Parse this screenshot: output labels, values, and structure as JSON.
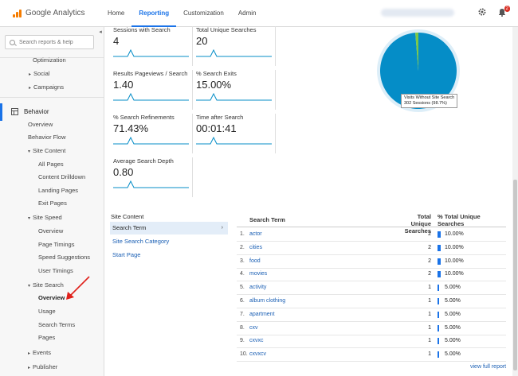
{
  "header": {
    "logo_text": "Google Analytics",
    "nav": [
      {
        "label": "Home",
        "active": false
      },
      {
        "label": "Reporting",
        "active": true
      },
      {
        "label": "Customization",
        "active": false
      },
      {
        "label": "Admin",
        "active": false
      }
    ],
    "notification_count": "2",
    "gear_icon": "gear-icon",
    "bell_icon": "bell-icon"
  },
  "sidebar": {
    "search_placeholder": "Search reports & help",
    "items": {
      "optimization": "Optimization",
      "social": "Social",
      "campaigns": "Campaigns",
      "behavior": "Behavior",
      "overview": "Overview",
      "behavior_flow": "Behavior Flow",
      "site_content": "Site Content",
      "all_pages": "All Pages",
      "content_drilldown": "Content Drilldown",
      "landing_pages": "Landing Pages",
      "exit_pages": "Exit Pages",
      "site_speed": "Site Speed",
      "speed_overview": "Overview",
      "page_timings": "Page Timings",
      "speed_suggestions": "Speed Suggestions",
      "user_timings": "User Timings",
      "site_search": "Site Search",
      "search_overview": "Overview",
      "usage": "Usage",
      "search_terms": "Search Terms",
      "pages": "Pages",
      "events": "Events",
      "publisher": "Publisher"
    }
  },
  "metrics": [
    {
      "label": "Sessions with Search",
      "value": "4"
    },
    {
      "label": "Total Unique Searches",
      "value": "20"
    },
    {
      "label": "Results Pageviews / Search",
      "value": "1.40"
    },
    {
      "label": "% Search Exits",
      "value": "15.00%"
    },
    {
      "label": "% Search Refinements",
      "value": "71.43%"
    },
    {
      "label": "Time after Search",
      "value": "00:01:41"
    },
    {
      "label": "Average Search Depth",
      "value": "0.80"
    }
  ],
  "pie": {
    "tooltip_line1": "Visits Without Site Search",
    "tooltip_line2": "302 Sessions (98.7%)",
    "main_fraction": 0.987,
    "main_color": "#058dc7",
    "minor_color": "#7cc845"
  },
  "site_content": {
    "header": "Site Content",
    "items": [
      "Search Term",
      "Site Search Category",
      "Start Page"
    ]
  },
  "search_table": {
    "col_term": "Search Term",
    "col_searches_1": "Total Unique",
    "col_searches_2": "Searches",
    "col_pct_1": "% Total Unique",
    "col_pct_2": "Searches",
    "rows": [
      {
        "idx": "1.",
        "term": "actor",
        "count": "2",
        "pct": "10.00%",
        "fraction": 0.1
      },
      {
        "idx": "2.",
        "term": "cities",
        "count": "2",
        "pct": "10.00%",
        "fraction": 0.1
      },
      {
        "idx": "3.",
        "term": "food",
        "count": "2",
        "pct": "10.00%",
        "fraction": 0.1
      },
      {
        "idx": "4.",
        "term": "movies",
        "count": "2",
        "pct": "10.00%",
        "fraction": 0.1
      },
      {
        "idx": "5.",
        "term": "activity",
        "count": "1",
        "pct": "5.00%",
        "fraction": 0.05
      },
      {
        "idx": "6.",
        "term": "album clothing",
        "count": "1",
        "pct": "5.00%",
        "fraction": 0.05
      },
      {
        "idx": "7.",
        "term": "apartment",
        "count": "1",
        "pct": "5.00%",
        "fraction": 0.05
      },
      {
        "idx": "8.",
        "term": "cxv",
        "count": "1",
        "pct": "5.00%",
        "fraction": 0.05
      },
      {
        "idx": "9.",
        "term": "cxvxc",
        "count": "1",
        "pct": "5.00%",
        "fraction": 0.05
      },
      {
        "idx": "10.",
        "term": "cxvxcv",
        "count": "1",
        "pct": "5.00%",
        "fraction": 0.05
      }
    ],
    "full_report": "view full report"
  },
  "colors": {
    "accent": "#1a73e8",
    "link": "#1a5fb4",
    "annotation_arrow": "#e0211b"
  }
}
